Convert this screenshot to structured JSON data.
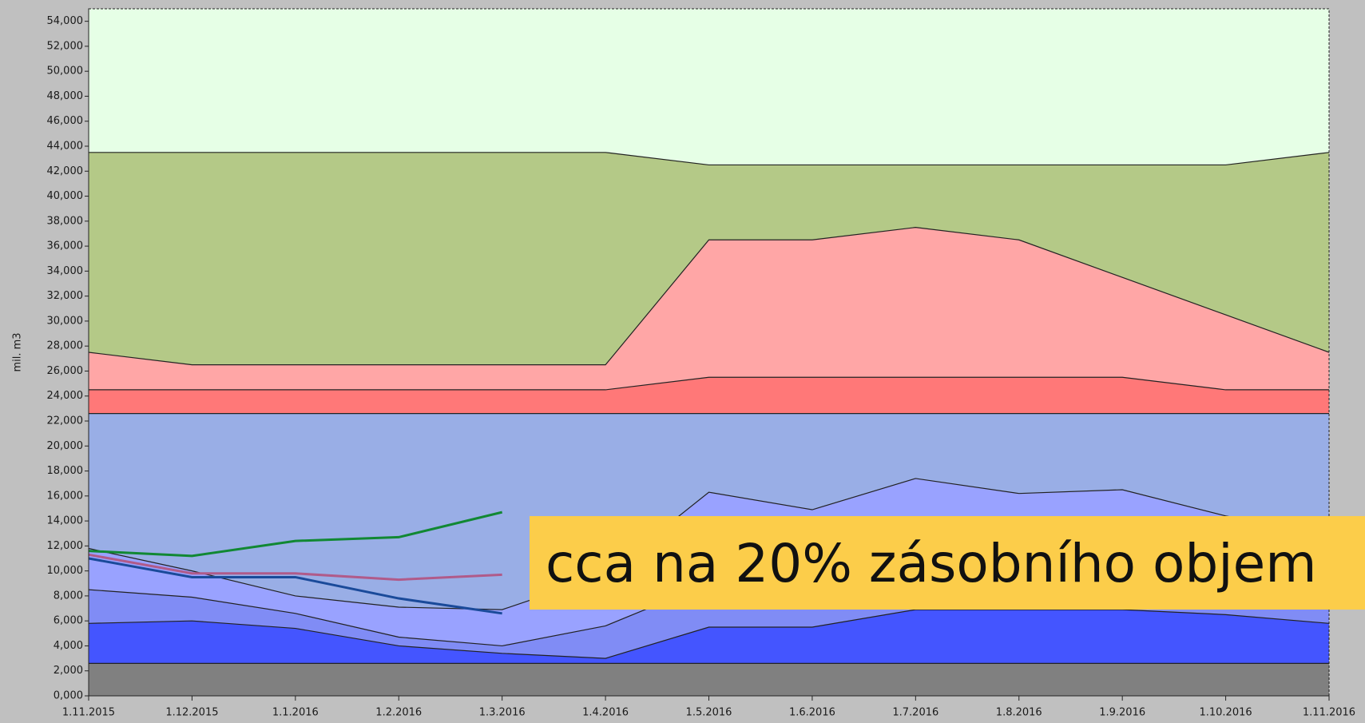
{
  "chart_data": {
    "type": "level_bands",
    "y_label": "mil. m3",
    "annotation": "cca na 20% zásobního objem",
    "annotation_color": "#fccd4a",
    "plot_color": "#e6ffe6",
    "categories": [
      "1.11.2015",
      "1.12.2015",
      "1.1.2016",
      "1.2.2016",
      "1.3.2016",
      "1.4.2016",
      "1.5.2016",
      "1.6.2016",
      "1.7.2016",
      "1.8.2016",
      "1.9.2016",
      "1.10.2016",
      "1.11.2016"
    ],
    "ylim": [
      0,
      55000
    ],
    "yticks": [
      {
        "value": 0,
        "label": "0,000"
      },
      {
        "value": 2000,
        "label": "2,000"
      },
      {
        "value": 4000,
        "label": "4,000"
      },
      {
        "value": 6000,
        "label": "6,000"
      },
      {
        "value": 8000,
        "label": "8,000"
      },
      {
        "value": 10000,
        "label": "10,000"
      },
      {
        "value": 12000,
        "label": "12,000"
      },
      {
        "value": 14000,
        "label": "14,000"
      },
      {
        "value": 16000,
        "label": "16,000"
      },
      {
        "value": 18000,
        "label": "18,000"
      },
      {
        "value": 20000,
        "label": "20,000"
      },
      {
        "value": 22000,
        "label": "22,000"
      },
      {
        "value": 24000,
        "label": "24,000"
      },
      {
        "value": 26000,
        "label": "26,000"
      },
      {
        "value": 28000,
        "label": "28,000"
      },
      {
        "value": 30000,
        "label": "30,000"
      },
      {
        "value": 32000,
        "label": "32,000"
      },
      {
        "value": 34000,
        "label": "34,000"
      },
      {
        "value": 36000,
        "label": "36,000"
      },
      {
        "value": 38000,
        "label": "38,000"
      },
      {
        "value": 40000,
        "label": "40,000"
      },
      {
        "value": 42000,
        "label": "42,000"
      },
      {
        "value": 44000,
        "label": "44,000"
      },
      {
        "value": 46000,
        "label": "46,000"
      },
      {
        "value": 48000,
        "label": "48,000"
      },
      {
        "value": 50000,
        "label": "50,000"
      },
      {
        "value": 52000,
        "label": "52,000"
      },
      {
        "value": 54000,
        "label": "54,000"
      }
    ],
    "series": [
      {
        "color": "#b4c987",
        "values": [
          43500,
          43500,
          43500,
          43500,
          43500,
          43500,
          42500,
          42500,
          42500,
          42500,
          42500,
          42500,
          43500
        ]
      },
      {
        "color": "#ffa6a6",
        "values": [
          27500,
          26500,
          26500,
          26500,
          26500,
          26500,
          36500,
          36500,
          37500,
          36500,
          33500,
          30500,
          27500
        ]
      },
      {
        "color": "#ff7878",
        "values": [
          24500,
          24500,
          24500,
          24500,
          24500,
          24500,
          25500,
          25500,
          25500,
          25500,
          25500,
          24500,
          24500
        ]
      },
      {
        "color": "#99aee6",
        "values": [
          22600,
          22600,
          22600,
          22600,
          22600,
          22600,
          22600,
          22600,
          22600,
          22600,
          22600,
          22600,
          22600
        ]
      },
      {
        "color": "#99a2ff",
        "values": [
          11800,
          10000,
          8000,
          7100,
          6900,
          9700,
          16300,
          14900,
          17400,
          16200,
          16500,
          14400,
          13000
        ]
      },
      {
        "color": "#808cf5",
        "values": [
          8500,
          7900,
          6600,
          4700,
          4000,
          5600,
          9000,
          9000,
          9000,
          9000,
          9000,
          7500,
          7000
        ]
      },
      {
        "color": "#4455ff",
        "values": [
          5800,
          6000,
          5400,
          4000,
          3400,
          3000,
          5500,
          5500,
          6900,
          6900,
          6900,
          6500,
          5800
        ]
      },
      {
        "color": "#808080",
        "values": [
          2600,
          2600,
          2600,
          2600,
          2600,
          2600,
          2600,
          2600,
          2600,
          2600,
          2600,
          2600,
          2600
        ]
      }
    ],
    "lines": [
      {
        "color": "#118833",
        "values": [
          11600,
          11200,
          12400,
          12700,
          14700,
          null,
          null,
          null,
          null,
          null,
          null,
          null,
          null
        ]
      },
      {
        "color": "#b05b8a",
        "values": [
          11300,
          9800,
          9800,
          9300,
          9700,
          null,
          null,
          null,
          null,
          null,
          null,
          null,
          null
        ]
      },
      {
        "color": "#1a4a9a",
        "values": [
          11000,
          9500,
          9500,
          7800,
          6600,
          null,
          null,
          null,
          null,
          null,
          null,
          null,
          null
        ]
      }
    ]
  }
}
